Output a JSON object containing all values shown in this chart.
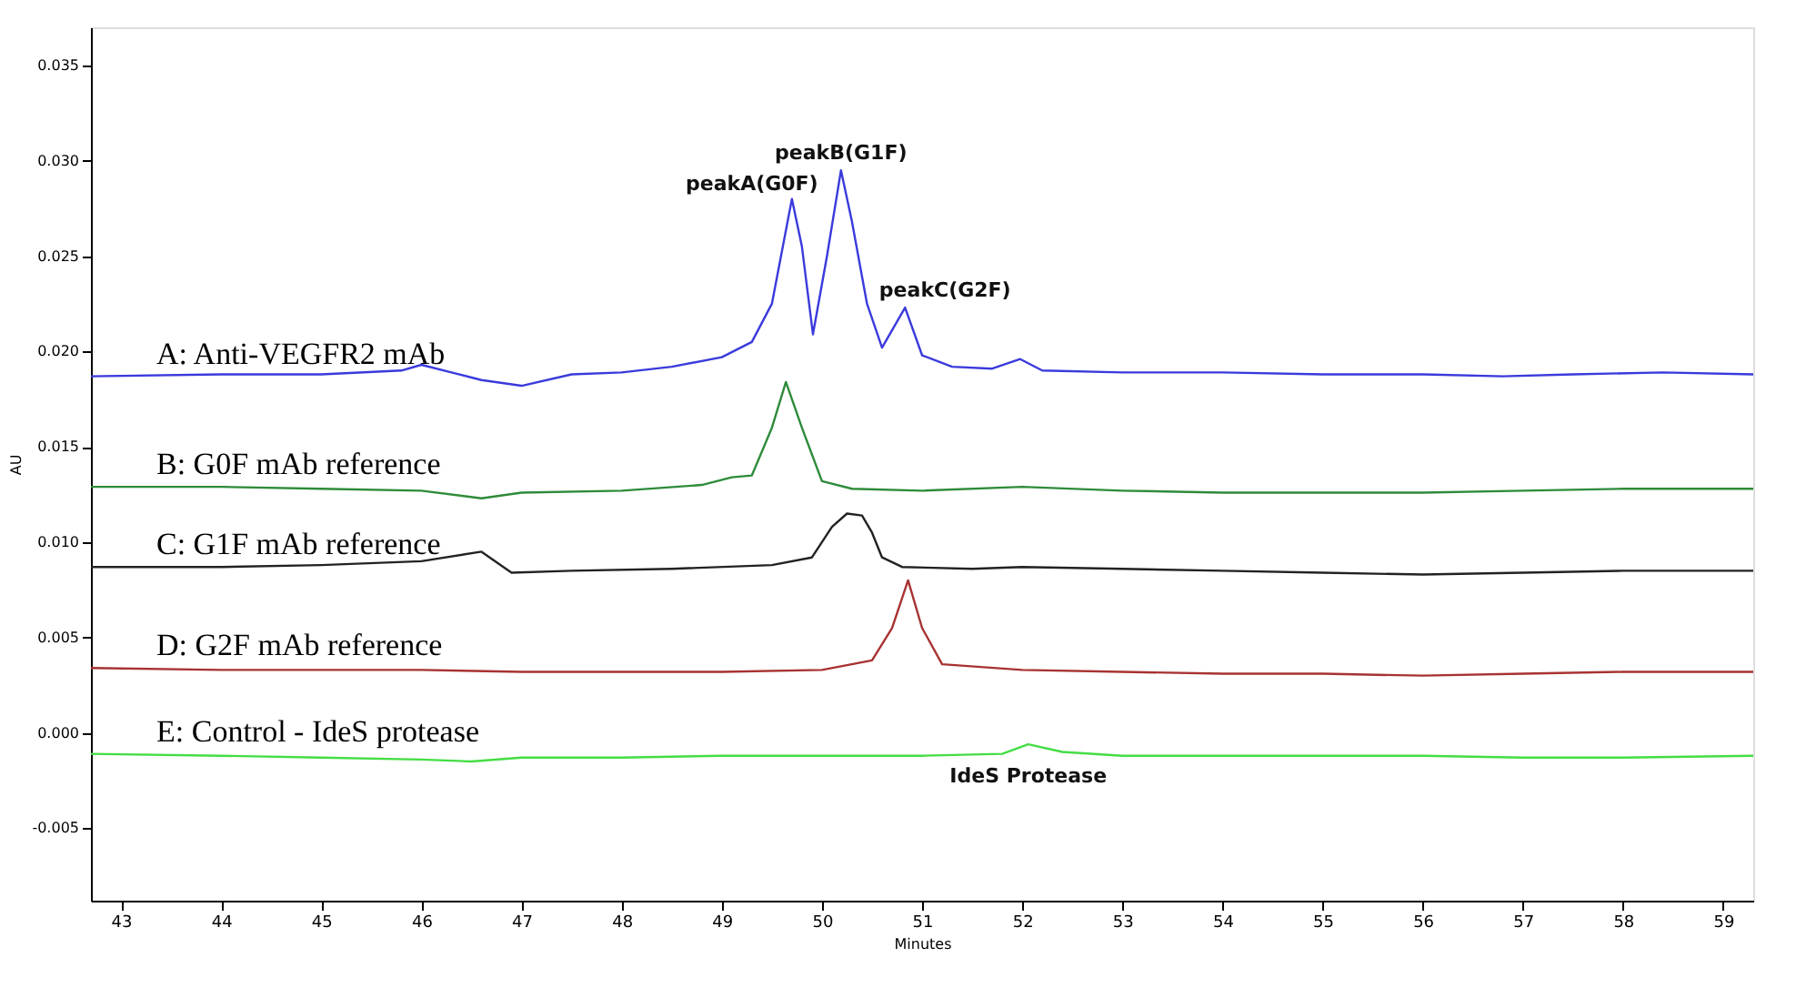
{
  "chart_data": {
    "type": "line",
    "xlabel": "Minutes",
    "ylabel": "AU",
    "xlim": [
      42.7,
      59.3
    ],
    "xticks": [
      43,
      44,
      45,
      46,
      47,
      48,
      49,
      50,
      51,
      52,
      53,
      54,
      55,
      56,
      57,
      58,
      59
    ],
    "ylim": [
      -0.0088,
      0.037
    ],
    "yticks": [
      {
        "value": -0.005,
        "label": "-0.005"
      },
      {
        "value": 0,
        "label": "0.000"
      },
      {
        "value": 0.005,
        "label": "0.005"
      },
      {
        "value": 0.01,
        "label": "0.010"
      },
      {
        "value": 0.015,
        "label": "0.015"
      },
      {
        "value": 0.02,
        "label": "0.020"
      },
      {
        "value": 0.025,
        "label": "0.025"
      },
      {
        "value": 0.03,
        "label": "0.030"
      },
      {
        "value": 0.035,
        "label": "0.035"
      }
    ],
    "grid": false,
    "marker": "none",
    "line_style": "solid",
    "series": [
      {
        "name": "A: Anti-VEGFR2 mAb",
        "color": "#3a3adc",
        "x": [
          42.7,
          44.0,
          45.0,
          45.8,
          46.0,
          46.3,
          46.6,
          47.0,
          47.5,
          48.0,
          48.5,
          49.0,
          49.3,
          49.5,
          49.7,
          49.8,
          49.91,
          50.05,
          50.19,
          50.3,
          50.45,
          50.6,
          50.83,
          51.0,
          51.3,
          51.7,
          51.98,
          52.2,
          53.0,
          54.0,
          55.0,
          56.0,
          56.8,
          57.5,
          58.4,
          59.3
        ],
        "values": [
          0.0187,
          0.0188,
          0.0188,
          0.019,
          0.0193,
          0.0189,
          0.0185,
          0.0182,
          0.0188,
          0.0189,
          0.0192,
          0.0197,
          0.0205,
          0.0225,
          0.028,
          0.0255,
          0.0209,
          0.025,
          0.0295,
          0.0268,
          0.0225,
          0.0202,
          0.0223,
          0.0198,
          0.0192,
          0.0191,
          0.0196,
          0.019,
          0.0189,
          0.0189,
          0.0188,
          0.0188,
          0.0187,
          0.0188,
          0.0189,
          0.0188
        ]
      },
      {
        "name": "B: G0F mAb reference",
        "color": "#2e8b3a",
        "x": [
          42.7,
          44.0,
          45.0,
          46.0,
          46.6,
          47.0,
          48.0,
          48.8,
          49.1,
          49.3,
          49.5,
          49.64,
          49.8,
          50.0,
          50.3,
          51.0,
          52.0,
          53.0,
          54.0,
          55.0,
          56.0,
          57.0,
          58.0,
          59.3
        ],
        "values": [
          0.0129,
          0.0129,
          0.0128,
          0.0127,
          0.0123,
          0.0126,
          0.0127,
          0.013,
          0.0134,
          0.0135,
          0.016,
          0.0184,
          0.016,
          0.0132,
          0.0128,
          0.0127,
          0.0129,
          0.0127,
          0.0126,
          0.0126,
          0.0126,
          0.0127,
          0.0128,
          0.0128
        ]
      },
      {
        "name": "C: G1F mAb reference",
        "color": "#222222",
        "x": [
          42.7,
          44.0,
          45.0,
          46.0,
          46.6,
          46.9,
          47.5,
          48.5,
          49.5,
          49.9,
          50.1,
          50.25,
          50.4,
          50.5,
          50.6,
          50.8,
          51.5,
          52.0,
          53.0,
          54.0,
          55.0,
          56.0,
          57.0,
          58.0,
          59.3
        ],
        "values": [
          0.0087,
          0.0087,
          0.0088,
          0.009,
          0.0095,
          0.0084,
          0.0085,
          0.0086,
          0.0088,
          0.0092,
          0.0108,
          0.0115,
          0.0114,
          0.0105,
          0.0092,
          0.0087,
          0.0086,
          0.0087,
          0.0086,
          0.0085,
          0.0084,
          0.0083,
          0.0084,
          0.0085,
          0.0085
        ]
      },
      {
        "name": "D: G2F mAb reference",
        "color": "#a83232",
        "x": [
          42.7,
          44.0,
          45.0,
          46.0,
          47.0,
          48.0,
          49.0,
          50.0,
          50.5,
          50.7,
          50.86,
          51.0,
          51.2,
          52.0,
          53.0,
          54.0,
          55.0,
          56.0,
          57.0,
          58.0,
          59.3
        ],
        "values": [
          0.0034,
          0.0033,
          0.0033,
          0.0033,
          0.0032,
          0.0032,
          0.0032,
          0.0033,
          0.0038,
          0.0055,
          0.008,
          0.0055,
          0.0036,
          0.0033,
          0.0032,
          0.0031,
          0.0031,
          0.003,
          0.0031,
          0.0032,
          0.0032
        ]
      },
      {
        "name": "E: Control - IdeS protease",
        "color": "#44dd44",
        "x": [
          42.7,
          44.0,
          45.0,
          46.0,
          46.5,
          47.0,
          48.0,
          49.0,
          50.0,
          51.0,
          51.8,
          52.06,
          52.4,
          53.0,
          54.0,
          55.0,
          56.0,
          57.0,
          58.0,
          59.3
        ],
        "values": [
          -0.0011,
          -0.0012,
          -0.0013,
          -0.0014,
          -0.0015,
          -0.0013,
          -0.0013,
          -0.0012,
          -0.0012,
          -0.0012,
          -0.0011,
          -0.0006,
          -0.001,
          -0.0012,
          -0.0012,
          -0.0012,
          -0.0012,
          -0.0013,
          -0.0013,
          -0.0012
        ]
      }
    ],
    "annotations": [
      {
        "text": "peakA(G0F)",
        "x": 49.7,
        "y": 0.028
      },
      {
        "text": "peakB(G1F)",
        "x": 50.19,
        "y": 0.0295
      },
      {
        "text": "peakC(G2F)",
        "x": 50.83,
        "y": 0.0223
      },
      {
        "text": "IdeS Protease",
        "x": 52.06,
        "y": -0.0006
      }
    ]
  }
}
